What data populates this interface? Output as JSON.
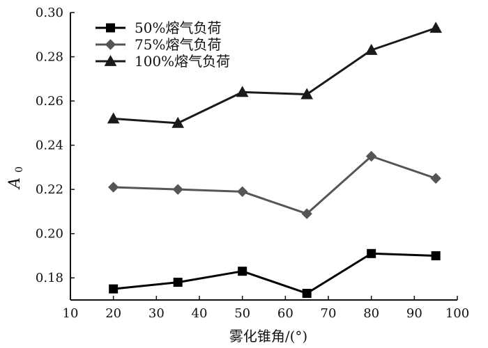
{
  "chart_data": {
    "type": "line",
    "x": [
      20,
      35,
      50,
      65,
      80,
      95
    ],
    "xlabel": "雾化锥角/(°)",
    "ylabel": "A",
    "ylabel_subscript": "0",
    "xlim": [
      10,
      100
    ],
    "ylim": [
      0.17,
      0.3
    ],
    "x_ticks": [
      "10",
      "20",
      "30",
      "40",
      "50",
      "60",
      "70",
      "80",
      "90",
      "100"
    ],
    "y_ticks": [
      "0.18",
      "0.20",
      "0.22",
      "0.24",
      "0.26",
      "0.28",
      "0.30"
    ],
    "grid": false,
    "legend_position": "top-left",
    "series": [
      {
        "name": "50%熔气负荷",
        "marker": "square",
        "color": "#000000",
        "values": [
          0.175,
          0.178,
          0.183,
          0.173,
          0.191,
          0.19
        ]
      },
      {
        "name": "75%熔气负荷",
        "marker": "diamond",
        "color": "#555555",
        "values": [
          0.221,
          0.22,
          0.219,
          0.209,
          0.235,
          0.225
        ]
      },
      {
        "name": "100%熔气负荷",
        "marker": "triangle",
        "color": "#1a1a1a",
        "values": [
          0.252,
          0.25,
          0.264,
          0.263,
          0.283,
          0.293
        ]
      }
    ]
  }
}
